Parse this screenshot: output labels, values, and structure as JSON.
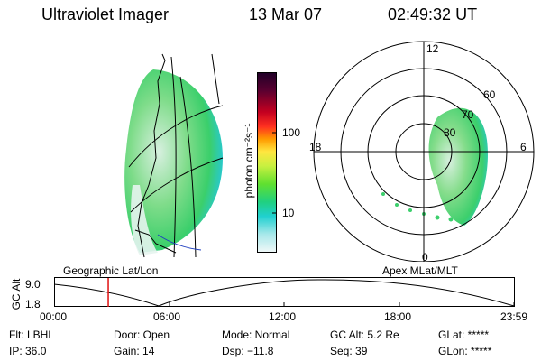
{
  "header": {
    "instrument": "Ultraviolet Imager",
    "date": "13 Mar 07",
    "time": "02:49:32 UT"
  },
  "colorbar": {
    "label": "photon cm⁻²s⁻¹",
    "ticks": [
      "100",
      "10"
    ]
  },
  "polar": {
    "mlt_labels": [
      "12",
      "18",
      "6",
      "0"
    ],
    "lat_labels": [
      "60",
      "70",
      "80"
    ]
  },
  "timeline": {
    "left_label": "Geographic Lat/Lon",
    "right_label": "Apex MLat/MLT",
    "axis_title": "GC Alt",
    "y_ticks": [
      "9.0",
      "1.8"
    ],
    "x_ticks": [
      "00:00",
      "06:00",
      "12:00",
      "18:00",
      "23:59"
    ],
    "current_hours": 2.825
  },
  "status": {
    "filter": "Flt: LBHL",
    "ip": "IP: 36.0",
    "door": "Door: Open",
    "gain": "Gain: 14",
    "mode": "Mode: Normal",
    "dsp": "Dsp:  −11.8",
    "gcalt": "GC Alt: 5.2 Re",
    "seq": "Seq: 39",
    "glat": "GLat: *****",
    "glon": "GLon: *****"
  },
  "colors": {
    "marker": "#e01010"
  }
}
